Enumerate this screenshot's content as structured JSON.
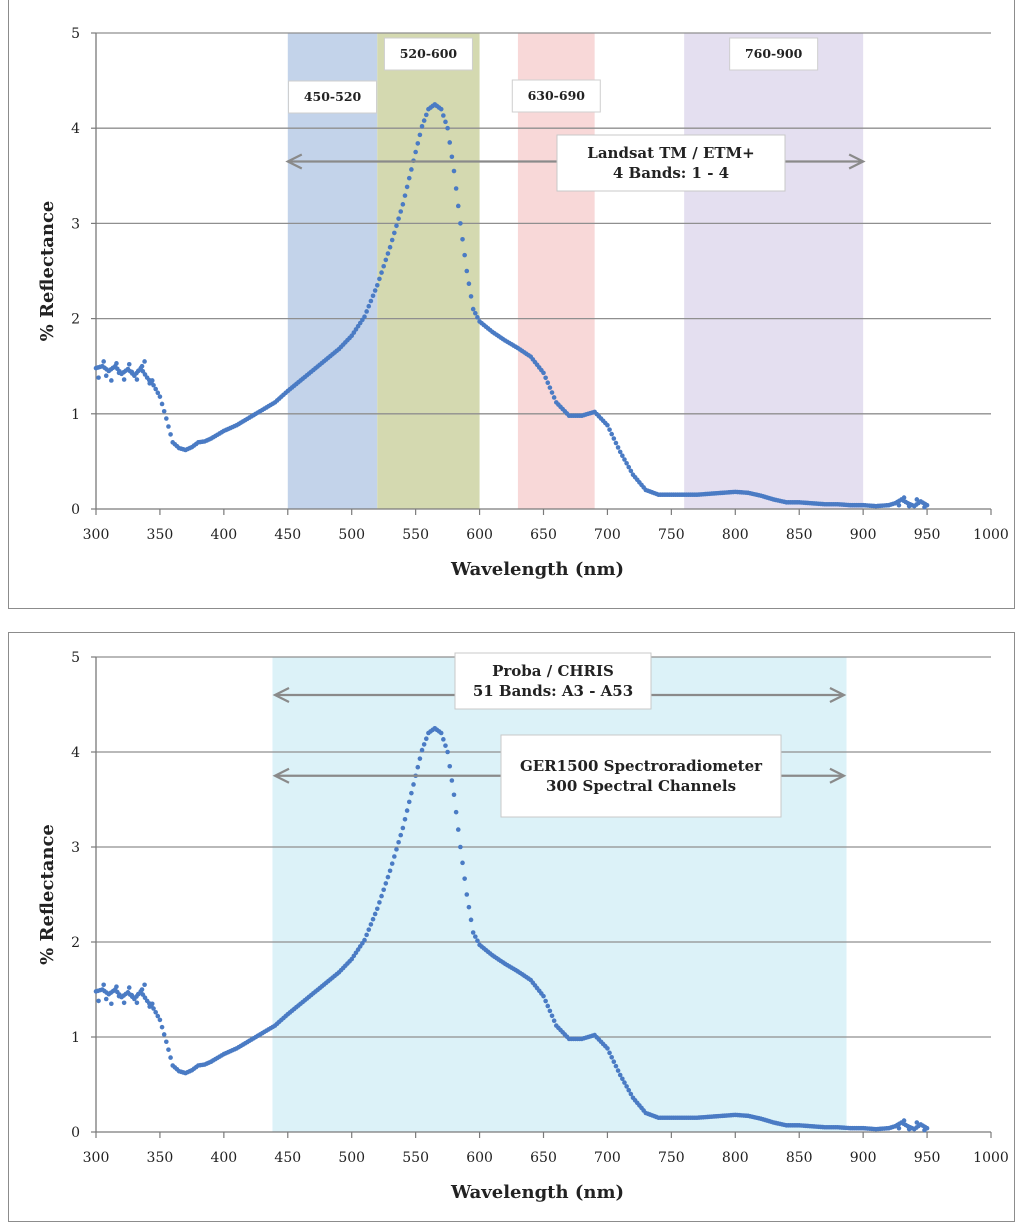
{
  "chart_data": [
    {
      "type": "scatter",
      "title": "",
      "xlabel": "Wavelength (nm)",
      "ylabel": "% Reflectance",
      "xlim": [
        300,
        1000
      ],
      "ylim": [
        0,
        5
      ],
      "xticks": [
        300,
        350,
        400,
        450,
        500,
        550,
        600,
        650,
        700,
        750,
        800,
        850,
        900,
        950,
        1000
      ],
      "yticks": [
        0,
        1,
        2,
        3,
        4,
        5
      ],
      "grid": "horizontal",
      "series_color": "#4a7bc4",
      "bands": [
        {
          "label": "450-520",
          "x0": 450,
          "x1": 520,
          "color": "#c3d3ea"
        },
        {
          "label": "520-600",
          "x0": 520,
          "x1": 600,
          "color": "#d4d9b0"
        },
        {
          "label": "630-690",
          "x0": 630,
          "x1": 690,
          "color": "#f8d8d8"
        },
        {
          "label": "760-900",
          "x0": 760,
          "x1": 900,
          "color": "#e4dff0"
        }
      ],
      "arrows": [
        {
          "x0": 450,
          "x1": 900,
          "y": 3.65,
          "label_lines": [
            "Landsat TM / ETM+",
            "4 Bands: 1 - 4"
          ]
        }
      ],
      "points": [
        [
          300,
          1.48
        ],
        [
          305,
          1.5
        ],
        [
          310,
          1.45
        ],
        [
          315,
          1.5
        ],
        [
          320,
          1.42
        ],
        [
          325,
          1.47
        ],
        [
          330,
          1.4
        ],
        [
          335,
          1.48
        ],
        [
          340,
          1.38
        ],
        [
          345,
          1.3
        ],
        [
          350,
          1.18
        ],
        [
          355,
          0.95
        ],
        [
          360,
          0.7
        ],
        [
          365,
          0.64
        ],
        [
          370,
          0.62
        ],
        [
          375,
          0.65
        ],
        [
          380,
          0.7
        ],
        [
          385,
          0.71
        ],
        [
          390,
          0.74
        ],
        [
          395,
          0.78
        ],
        [
          400,
          0.82
        ],
        [
          410,
          0.88
        ],
        [
          420,
          0.96
        ],
        [
          430,
          1.04
        ],
        [
          440,
          1.12
        ],
        [
          450,
          1.24
        ],
        [
          460,
          1.35
        ],
        [
          470,
          1.46
        ],
        [
          480,
          1.57
        ],
        [
          490,
          1.68
        ],
        [
          500,
          1.82
        ],
        [
          510,
          2.02
        ],
        [
          520,
          2.35
        ],
        [
          530,
          2.75
        ],
        [
          540,
          3.2
        ],
        [
          550,
          3.75
        ],
        [
          555,
          4.02
        ],
        [
          560,
          4.2
        ],
        [
          565,
          4.25
        ],
        [
          570,
          4.2
        ],
        [
          575,
          4.0
        ],
        [
          580,
          3.55
        ],
        [
          585,
          3.0
        ],
        [
          590,
          2.5
        ],
        [
          595,
          2.1
        ],
        [
          600,
          1.97
        ],
        [
          610,
          1.86
        ],
        [
          620,
          1.77
        ],
        [
          630,
          1.69
        ],
        [
          640,
          1.6
        ],
        [
          650,
          1.43
        ],
        [
          660,
          1.12
        ],
        [
          670,
          0.98
        ],
        [
          680,
          0.98
        ],
        [
          690,
          1.02
        ],
        [
          700,
          0.88
        ],
        [
          710,
          0.6
        ],
        [
          720,
          0.36
        ],
        [
          730,
          0.2
        ],
        [
          740,
          0.15
        ],
        [
          750,
          0.15
        ],
        [
          760,
          0.15
        ],
        [
          770,
          0.15
        ],
        [
          780,
          0.16
        ],
        [
          790,
          0.17
        ],
        [
          800,
          0.18
        ],
        [
          810,
          0.17
        ],
        [
          820,
          0.14
        ],
        [
          830,
          0.1
        ],
        [
          840,
          0.07
        ],
        [
          850,
          0.07
        ],
        [
          860,
          0.06
        ],
        [
          870,
          0.05
        ],
        [
          880,
          0.05
        ],
        [
          890,
          0.04
        ],
        [
          900,
          0.04
        ],
        [
          910,
          0.03
        ],
        [
          920,
          0.04
        ],
        [
          925,
          0.06
        ],
        [
          930,
          0.1
        ],
        [
          935,
          0.06
        ],
        [
          940,
          0.03
        ],
        [
          945,
          0.08
        ],
        [
          950,
          0.04
        ]
      ],
      "scatter_points": [
        [
          302,
          1.38
        ],
        [
          308,
          1.4
        ],
        [
          312,
          1.35
        ],
        [
          318,
          1.43
        ],
        [
          322,
          1.36
        ],
        [
          328,
          1.44
        ],
        [
          332,
          1.36
        ],
        [
          336,
          1.5
        ],
        [
          338,
          1.55
        ],
        [
          342,
          1.32
        ],
        [
          306,
          1.55
        ],
        [
          316,
          1.53
        ],
        [
          326,
          1.52
        ],
        [
          333,
          1.45
        ],
        [
          344,
          1.35
        ],
        [
          928,
          0.04
        ],
        [
          932,
          0.12
        ],
        [
          936,
          0.03
        ],
        [
          942,
          0.1
        ],
        [
          948,
          0.02
        ]
      ]
    },
    {
      "type": "scatter",
      "title": "",
      "xlabel": "Wavelength (nm)",
      "ylabel": "% Reflectance",
      "xlim": [
        300,
        1000
      ],
      "ylim": [
        0,
        5
      ],
      "xticks": [
        300,
        350,
        400,
        450,
        500,
        550,
        600,
        650,
        700,
        750,
        800,
        850,
        900,
        950,
        1000
      ],
      "yticks": [
        0,
        1,
        2,
        3,
        4,
        5
      ],
      "grid": "horizontal",
      "series_color": "#4a7bc4",
      "bands": [
        {
          "label": "",
          "x0": 438,
          "x1": 887,
          "color": "#dcf2f8"
        }
      ],
      "arrows": [
        {
          "x0": 440,
          "x1": 885,
          "y": 4.6,
          "label_lines": [
            "Proba / CHRIS",
            "51 Bands: A3 - A53"
          ]
        },
        {
          "x0": 440,
          "x1": 885,
          "y": 3.75,
          "label_lines": [
            "GER1500 Spectroradiometer",
            "300 Spectral Channels"
          ]
        }
      ],
      "points": [
        [
          300,
          1.48
        ],
        [
          305,
          1.5
        ],
        [
          310,
          1.45
        ],
        [
          315,
          1.5
        ],
        [
          320,
          1.42
        ],
        [
          325,
          1.47
        ],
        [
          330,
          1.4
        ],
        [
          335,
          1.48
        ],
        [
          340,
          1.38
        ],
        [
          345,
          1.3
        ],
        [
          350,
          1.18
        ],
        [
          355,
          0.95
        ],
        [
          360,
          0.7
        ],
        [
          365,
          0.64
        ],
        [
          370,
          0.62
        ],
        [
          375,
          0.65
        ],
        [
          380,
          0.7
        ],
        [
          385,
          0.71
        ],
        [
          390,
          0.74
        ],
        [
          395,
          0.78
        ],
        [
          400,
          0.82
        ],
        [
          410,
          0.88
        ],
        [
          420,
          0.96
        ],
        [
          430,
          1.04
        ],
        [
          440,
          1.12
        ],
        [
          450,
          1.24
        ],
        [
          460,
          1.35
        ],
        [
          470,
          1.46
        ],
        [
          480,
          1.57
        ],
        [
          490,
          1.68
        ],
        [
          500,
          1.82
        ],
        [
          510,
          2.02
        ],
        [
          520,
          2.35
        ],
        [
          530,
          2.75
        ],
        [
          540,
          3.2
        ],
        [
          550,
          3.75
        ],
        [
          555,
          4.02
        ],
        [
          560,
          4.2
        ],
        [
          565,
          4.25
        ],
        [
          570,
          4.2
        ],
        [
          575,
          4.0
        ],
        [
          580,
          3.55
        ],
        [
          585,
          3.0
        ],
        [
          590,
          2.5
        ],
        [
          595,
          2.1
        ],
        [
          600,
          1.97
        ],
        [
          610,
          1.86
        ],
        [
          620,
          1.77
        ],
        [
          630,
          1.69
        ],
        [
          640,
          1.6
        ],
        [
          650,
          1.43
        ],
        [
          660,
          1.12
        ],
        [
          670,
          0.98
        ],
        [
          680,
          0.98
        ],
        [
          690,
          1.02
        ],
        [
          700,
          0.88
        ],
        [
          710,
          0.6
        ],
        [
          720,
          0.36
        ],
        [
          730,
          0.2
        ],
        [
          740,
          0.15
        ],
        [
          750,
          0.15
        ],
        [
          760,
          0.15
        ],
        [
          770,
          0.15
        ],
        [
          780,
          0.16
        ],
        [
          790,
          0.17
        ],
        [
          800,
          0.18
        ],
        [
          810,
          0.17
        ],
        [
          820,
          0.14
        ],
        [
          830,
          0.1
        ],
        [
          840,
          0.07
        ],
        [
          850,
          0.07
        ],
        [
          860,
          0.06
        ],
        [
          870,
          0.05
        ],
        [
          880,
          0.05
        ],
        [
          890,
          0.04
        ],
        [
          900,
          0.04
        ],
        [
          910,
          0.03
        ],
        [
          920,
          0.04
        ],
        [
          925,
          0.06
        ],
        [
          930,
          0.1
        ],
        [
          935,
          0.06
        ],
        [
          940,
          0.03
        ],
        [
          945,
          0.08
        ],
        [
          950,
          0.04
        ]
      ],
      "scatter_points": [
        [
          302,
          1.38
        ],
        [
          308,
          1.4
        ],
        [
          312,
          1.35
        ],
        [
          318,
          1.43
        ],
        [
          322,
          1.36
        ],
        [
          328,
          1.44
        ],
        [
          332,
          1.36
        ],
        [
          336,
          1.5
        ],
        [
          338,
          1.55
        ],
        [
          342,
          1.32
        ],
        [
          306,
          1.55
        ],
        [
          316,
          1.53
        ],
        [
          326,
          1.52
        ],
        [
          333,
          1.45
        ],
        [
          344,
          1.35
        ],
        [
          928,
          0.04
        ],
        [
          932,
          0.12
        ],
        [
          936,
          0.03
        ],
        [
          942,
          0.1
        ],
        [
          948,
          0.02
        ]
      ]
    }
  ]
}
